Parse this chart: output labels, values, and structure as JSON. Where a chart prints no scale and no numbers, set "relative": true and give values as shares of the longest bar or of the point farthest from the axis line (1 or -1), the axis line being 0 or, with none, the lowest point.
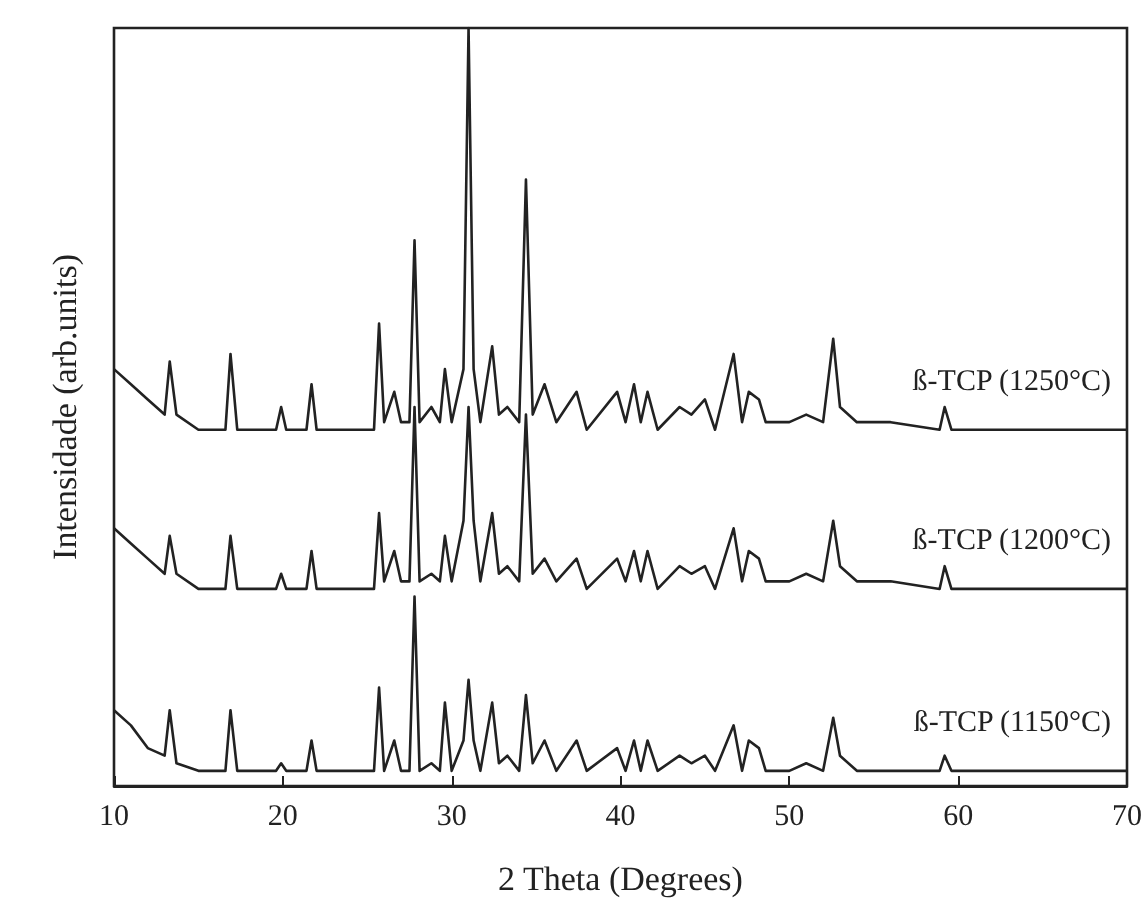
{
  "chart_data": {
    "type": "line",
    "xlabel": "2 Theta (Degrees)",
    "ylabel": "Intensidade (arb.units)",
    "relative": true,
    "xlim": [
      10,
      70
    ],
    "xticks": [
      10,
      20,
      30,
      40,
      50,
      60,
      70
    ],
    "grid": false,
    "legend": false,
    "marker": "none",
    "line_style": "solid",
    "x": [
      10,
      11,
      12,
      13,
      13.3,
      13.7,
      15,
      16.6,
      16.9,
      17.3,
      19.6,
      19.9,
      20.2,
      21.4,
      21.7,
      22.0,
      25.4,
      25.7,
      26.0,
      26.6,
      27.0,
      27.5,
      27.8,
      28.1,
      28.8,
      29.3,
      29.6,
      30.0,
      30.7,
      31.0,
      31.3,
      31.7,
      32.4,
      32.8,
      33.3,
      34.0,
      34.4,
      34.8,
      35.5,
      36.2,
      37.4,
      38.0,
      39.8,
      40.3,
      40.8,
      41.2,
      41.6,
      42.2,
      43.5,
      44.2,
      45.0,
      45.6,
      46.7,
      47.2,
      47.6,
      48.2,
      48.6,
      50.0,
      51.0,
      52.0,
      52.6,
      53.0,
      54.0,
      56.0,
      58.9,
      59.2,
      59.6,
      64,
      70
    ],
    "series": [
      {
        "name": "ß-TCP (1250°C)",
        "color": "#222222",
        "values": [
          0.55,
          0.53,
          0.51,
          0.49,
          0.56,
          0.49,
          0.47,
          0.47,
          0.57,
          0.47,
          0.47,
          0.5,
          0.47,
          0.47,
          0.53,
          0.47,
          0.47,
          0.61,
          0.48,
          0.52,
          0.48,
          0.48,
          0.72,
          0.48,
          0.5,
          0.48,
          0.55,
          0.48,
          0.55,
          1.0,
          0.55,
          0.48,
          0.58,
          0.49,
          0.5,
          0.48,
          0.8,
          0.49,
          0.53,
          0.48,
          0.52,
          0.47,
          0.52,
          0.48,
          0.53,
          0.48,
          0.52,
          0.47,
          0.5,
          0.49,
          0.51,
          0.47,
          0.57,
          0.48,
          0.52,
          0.51,
          0.48,
          0.48,
          0.49,
          0.48,
          0.59,
          0.5,
          0.48,
          0.48,
          0.47,
          0.5,
          0.47,
          0.47,
          0.47
        ]
      },
      {
        "name": "ß-TCP (1200°C)",
        "color": "#222222",
        "values": [
          0.34,
          0.32,
          0.3,
          0.28,
          0.33,
          0.28,
          0.26,
          0.26,
          0.33,
          0.26,
          0.26,
          0.28,
          0.26,
          0.26,
          0.31,
          0.26,
          0.26,
          0.36,
          0.27,
          0.31,
          0.27,
          0.27,
          0.5,
          0.27,
          0.28,
          0.27,
          0.33,
          0.27,
          0.35,
          0.5,
          0.35,
          0.27,
          0.36,
          0.28,
          0.29,
          0.27,
          0.49,
          0.28,
          0.3,
          0.27,
          0.3,
          0.26,
          0.3,
          0.27,
          0.31,
          0.27,
          0.31,
          0.26,
          0.29,
          0.28,
          0.29,
          0.26,
          0.34,
          0.27,
          0.31,
          0.3,
          0.27,
          0.27,
          0.28,
          0.27,
          0.35,
          0.29,
          0.27,
          0.27,
          0.26,
          0.29,
          0.26,
          0.26,
          0.26
        ]
      },
      {
        "name": "ß-TCP (1150°C)",
        "color": "#222222",
        "values": [
          0.1,
          0.08,
          0.05,
          0.04,
          0.1,
          0.03,
          0.02,
          0.02,
          0.1,
          0.02,
          0.02,
          0.03,
          0.02,
          0.02,
          0.06,
          0.02,
          0.02,
          0.13,
          0.02,
          0.06,
          0.02,
          0.02,
          0.25,
          0.02,
          0.03,
          0.02,
          0.11,
          0.02,
          0.06,
          0.14,
          0.06,
          0.02,
          0.11,
          0.03,
          0.04,
          0.02,
          0.12,
          0.03,
          0.06,
          0.02,
          0.06,
          0.02,
          0.05,
          0.02,
          0.06,
          0.02,
          0.06,
          0.02,
          0.04,
          0.03,
          0.04,
          0.02,
          0.08,
          0.02,
          0.06,
          0.05,
          0.02,
          0.02,
          0.03,
          0.02,
          0.09,
          0.04,
          0.02,
          0.02,
          0.02,
          0.04,
          0.02,
          0.02,
          0.02
        ]
      }
    ]
  }
}
